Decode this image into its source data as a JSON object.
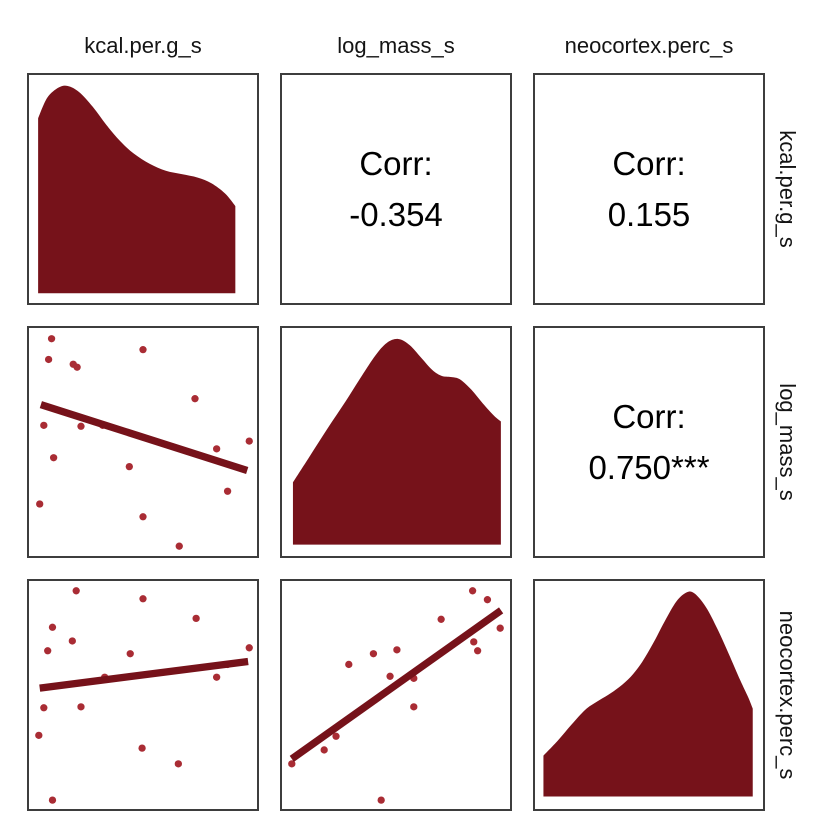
{
  "figure": {
    "description": "ggpairs-style 3x3 scatterplot matrix with density diagonals, correlation upper triangle and scatter+trend lower triangle",
    "strip_labels": {
      "top": [
        "kcal.per.g_s",
        "log_mass_s",
        "neocortex.perc_s"
      ],
      "right": [
        "kcal.per.g_s",
        "log_mass_s",
        "neocortex.perc_s"
      ]
    },
    "colors": {
      "maroon": "#76121A",
      "point": "#A92C34",
      "panel_border": "#3d3d3d",
      "text": "#000000",
      "background": "#ffffff"
    }
  },
  "chart_data": {
    "type": "scatter-matrix",
    "variables": [
      "kcal.per.g_s",
      "log_mass_s",
      "neocortex.perc_s"
    ],
    "legend": "none",
    "axes": "no tick marks or tick labels shown on any panel",
    "coordinates": "panel fractions: x 0-1 left to right, y 0-1 top to bottom",
    "correlations": [
      {
        "pair": [
          "kcal.per.g_s",
          "log_mass_s"
        ],
        "value": -0.354,
        "stars": ""
      },
      {
        "pair": [
          "kcal.per.g_s",
          "neocortex.perc_s"
        ],
        "value": 0.155,
        "stars": ""
      },
      {
        "pair": [
          "log_mass_s",
          "neocortex.perc_s"
        ],
        "value": 0.75,
        "stars": "***"
      }
    ],
    "panels": [
      {
        "row": 0,
        "col": 0,
        "kind": "density",
        "variable": "kcal.per.g_s",
        "baseline": 0.957,
        "curve": [
          [
            0.04,
            0.19
          ],
          [
            0.08,
            0.1
          ],
          [
            0.13,
            0.055
          ],
          [
            0.17,
            0.048
          ],
          [
            0.22,
            0.075
          ],
          [
            0.28,
            0.14
          ],
          [
            0.34,
            0.22
          ],
          [
            0.4,
            0.29
          ],
          [
            0.46,
            0.345
          ],
          [
            0.53,
            0.39
          ],
          [
            0.6,
            0.42
          ],
          [
            0.67,
            0.435
          ],
          [
            0.74,
            0.45
          ],
          [
            0.8,
            0.475
          ],
          [
            0.86,
            0.52
          ],
          [
            0.905,
            0.575
          ]
        ]
      },
      {
        "row": 0,
        "col": 1,
        "kind": "corr",
        "var_x": "log_mass_s",
        "var_y": "kcal.per.g_s",
        "line1": "Corr:",
        "line2": "-0.354"
      },
      {
        "row": 0,
        "col": 2,
        "kind": "corr",
        "var_x": "neocortex.perc_s",
        "var_y": "kcal.per.g_s",
        "line1": "Corr:",
        "line2": "0.155"
      },
      {
        "row": 1,
        "col": 0,
        "kind": "scatter",
        "var_x": "kcal.per.g_s",
        "var_y": "log_mass_s",
        "points": [
          [
            0.099,
            0.047
          ],
          [
            0.5,
            0.095
          ],
          [
            0.086,
            0.138
          ],
          [
            0.194,
            0.159
          ],
          [
            0.211,
            0.172
          ],
          [
            0.728,
            0.31
          ],
          [
            0.065,
            0.427
          ],
          [
            0.228,
            0.431
          ],
          [
            0.323,
            0.427
          ],
          [
            0.966,
            0.496
          ],
          [
            0.823,
            0.53
          ],
          [
            0.108,
            0.569
          ],
          [
            0.44,
            0.608
          ],
          [
            0.871,
            0.716
          ],
          [
            0.047,
            0.772
          ],
          [
            0.5,
            0.828
          ],
          [
            0.659,
            0.957
          ]
        ],
        "trend": [
          [
            0.052,
            0.336
          ],
          [
            0.957,
            0.625
          ]
        ]
      },
      {
        "row": 1,
        "col": 1,
        "kind": "density",
        "variable": "log_mass_s",
        "baseline": 0.95,
        "curve": [
          [
            0.048,
            0.677
          ],
          [
            0.12,
            0.565
          ],
          [
            0.2,
            0.44
          ],
          [
            0.28,
            0.32
          ],
          [
            0.35,
            0.21
          ],
          [
            0.41,
            0.12
          ],
          [
            0.46,
            0.065
          ],
          [
            0.51,
            0.048
          ],
          [
            0.56,
            0.075
          ],
          [
            0.61,
            0.13
          ],
          [
            0.66,
            0.185
          ],
          [
            0.7,
            0.21
          ],
          [
            0.74,
            0.215
          ],
          [
            0.78,
            0.225
          ],
          [
            0.83,
            0.27
          ],
          [
            0.88,
            0.33
          ],
          [
            0.93,
            0.385
          ],
          [
            0.96,
            0.41
          ]
        ]
      },
      {
        "row": 1,
        "col": 2,
        "kind": "corr",
        "var_x": "neocortex.perc_s",
        "var_y": "log_mass_s",
        "line1": "Corr:",
        "line2": "0.750***"
      },
      {
        "row": 2,
        "col": 0,
        "kind": "scatter",
        "var_x": "kcal.per.g_s",
        "var_y": "neocortex.perc_s",
        "points": [
          [
            0.207,
            0.043
          ],
          [
            0.5,
            0.078
          ],
          [
            0.733,
            0.164
          ],
          [
            0.103,
            0.203
          ],
          [
            0.19,
            0.263
          ],
          [
            0.082,
            0.306
          ],
          [
            0.444,
            0.319
          ],
          [
            0.966,
            0.293
          ],
          [
            0.871,
            0.366
          ],
          [
            0.823,
            0.422
          ],
          [
            0.332,
            0.422
          ],
          [
            0.065,
            0.556
          ],
          [
            0.228,
            0.552
          ],
          [
            0.043,
            0.677
          ],
          [
            0.496,
            0.733
          ],
          [
            0.655,
            0.802
          ],
          [
            0.103,
            0.961
          ]
        ],
        "trend": [
          [
            0.047,
            0.47
          ],
          [
            0.961,
            0.353
          ]
        ]
      },
      {
        "row": 2,
        "col": 1,
        "kind": "scatter",
        "var_x": "log_mass_s",
        "var_y": "neocortex.perc_s",
        "points": [
          [
            0.836,
            0.043
          ],
          [
            0.901,
            0.082
          ],
          [
            0.698,
            0.168
          ],
          [
            0.957,
            0.207
          ],
          [
            0.841,
            0.267
          ],
          [
            0.858,
            0.306
          ],
          [
            0.504,
            0.302
          ],
          [
            0.401,
            0.319
          ],
          [
            0.293,
            0.366
          ],
          [
            0.474,
            0.418
          ],
          [
            0.578,
            0.427
          ],
          [
            0.578,
            0.552
          ],
          [
            0.237,
            0.681
          ],
          [
            0.185,
            0.741
          ],
          [
            0.043,
            0.802
          ],
          [
            0.435,
            0.961
          ]
        ],
        "trend": [
          [
            0.043,
            0.78
          ],
          [
            0.961,
            0.129
          ]
        ]
      },
      {
        "row": 2,
        "col": 2,
        "kind": "density",
        "variable": "neocortex.perc_s",
        "baseline": 0.945,
        "curve": [
          [
            0.037,
            0.766
          ],
          [
            0.1,
            0.7
          ],
          [
            0.16,
            0.63
          ],
          [
            0.22,
            0.565
          ],
          [
            0.27,
            0.53
          ],
          [
            0.32,
            0.5
          ],
          [
            0.37,
            0.465
          ],
          [
            0.42,
            0.42
          ],
          [
            0.47,
            0.355
          ],
          [
            0.52,
            0.27
          ],
          [
            0.57,
            0.175
          ],
          [
            0.62,
            0.09
          ],
          [
            0.665,
            0.05
          ],
          [
            0.7,
            0.055
          ],
          [
            0.75,
            0.115
          ],
          [
            0.8,
            0.21
          ],
          [
            0.85,
            0.32
          ],
          [
            0.9,
            0.435
          ],
          [
            0.935,
            0.51
          ],
          [
            0.955,
            0.56
          ]
        ]
      }
    ]
  }
}
